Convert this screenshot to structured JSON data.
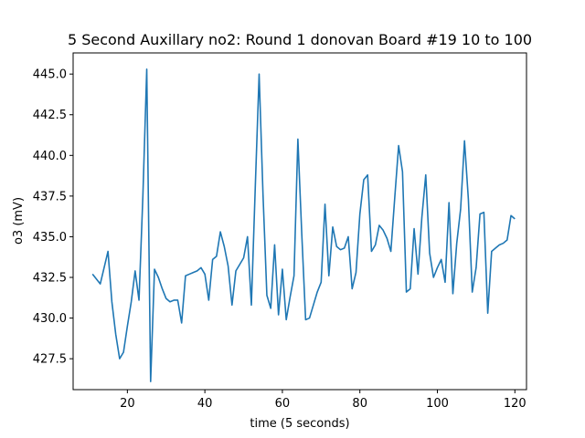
{
  "chart_data": {
    "type": "line",
    "title": "5 Second Auxillary no2: Round 1 donovan Board #19 10 to 100",
    "xlabel": "time (5 seconds)",
    "ylabel": "o3 (mV)",
    "xlim": [
      6,
      123
    ],
    "ylim": [
      425.6,
      446.3
    ],
    "x_ticks": [
      20,
      40,
      60,
      80,
      100,
      120
    ],
    "x_tick_labels": [
      "20",
      "40",
      "60",
      "80",
      "100",
      "120"
    ],
    "y_ticks": [
      427.5,
      430.0,
      432.5,
      435.0,
      437.5,
      440.0,
      442.5,
      445.0
    ],
    "y_tick_labels": [
      "427.5",
      "430.0",
      "432.5",
      "435.0",
      "437.5",
      "440.0",
      "442.5",
      "445.0"
    ],
    "grid": false,
    "line_color": "#1f77b4",
    "series": [
      {
        "x": [
          11,
          13,
          15,
          16,
          17,
          18,
          19,
          20,
          21,
          22,
          23,
          24,
          25,
          26,
          27,
          28,
          29,
          30,
          31,
          32,
          33,
          34,
          35,
          36,
          37,
          38,
          39,
          40,
          41,
          42,
          43,
          44,
          45,
          46,
          47,
          48,
          49,
          50,
          51,
          52,
          53,
          54,
          55,
          56,
          57,
          58,
          59,
          60,
          61,
          62,
          63,
          64,
          65,
          66,
          67,
          68,
          69,
          70,
          71,
          72,
          73,
          74,
          75,
          76,
          77,
          78,
          79,
          80,
          81,
          82,
          83,
          84,
          85,
          86,
          87,
          88,
          89,
          90,
          91,
          92,
          93,
          94,
          95,
          96,
          97,
          98,
          99,
          100,
          101,
          102,
          103,
          104,
          105,
          106,
          107,
          108,
          109,
          110,
          111,
          112,
          113,
          114,
          115,
          116,
          117,
          118,
          119,
          120
        ],
        "y": [
          432.7,
          432.1,
          434.1,
          431.0,
          429.0,
          427.5,
          427.9,
          429.5,
          431.0,
          432.9,
          431.1,
          437.5,
          445.3,
          426.1,
          433.0,
          432.5,
          431.8,
          431.2,
          431.0,
          431.1,
          431.1,
          429.7,
          432.6,
          432.7,
          432.8,
          432.9,
          433.1,
          432.7,
          431.1,
          433.6,
          433.8,
          435.3,
          434.4,
          433.2,
          430.8,
          432.9,
          433.3,
          433.7,
          435.0,
          430.8,
          438.0,
          445.0,
          437.6,
          431.4,
          430.6,
          434.5,
          430.2,
          433.0,
          429.9,
          431.3,
          432.6,
          441.0,
          435.2,
          429.9,
          430.0,
          430.8,
          431.6,
          432.2,
          437.0,
          432.6,
          435.6,
          434.4,
          434.2,
          434.3,
          435.0,
          431.8,
          432.8,
          436.4,
          438.5,
          438.8,
          434.1,
          434.5,
          435.7,
          435.4,
          434.9,
          434.1,
          437.4,
          440.6,
          439.0,
          431.6,
          431.8,
          435.5,
          432.7,
          436.2,
          438.8,
          434.0,
          432.5,
          433.1,
          433.6,
          432.2,
          437.1,
          431.5,
          434.6,
          436.7,
          440.9,
          437.3,
          431.6,
          433.1,
          436.4,
          436.5,
          430.3,
          434.1,
          434.3,
          434.5,
          434.6,
          434.8,
          436.3,
          436.1
        ]
      }
    ]
  }
}
